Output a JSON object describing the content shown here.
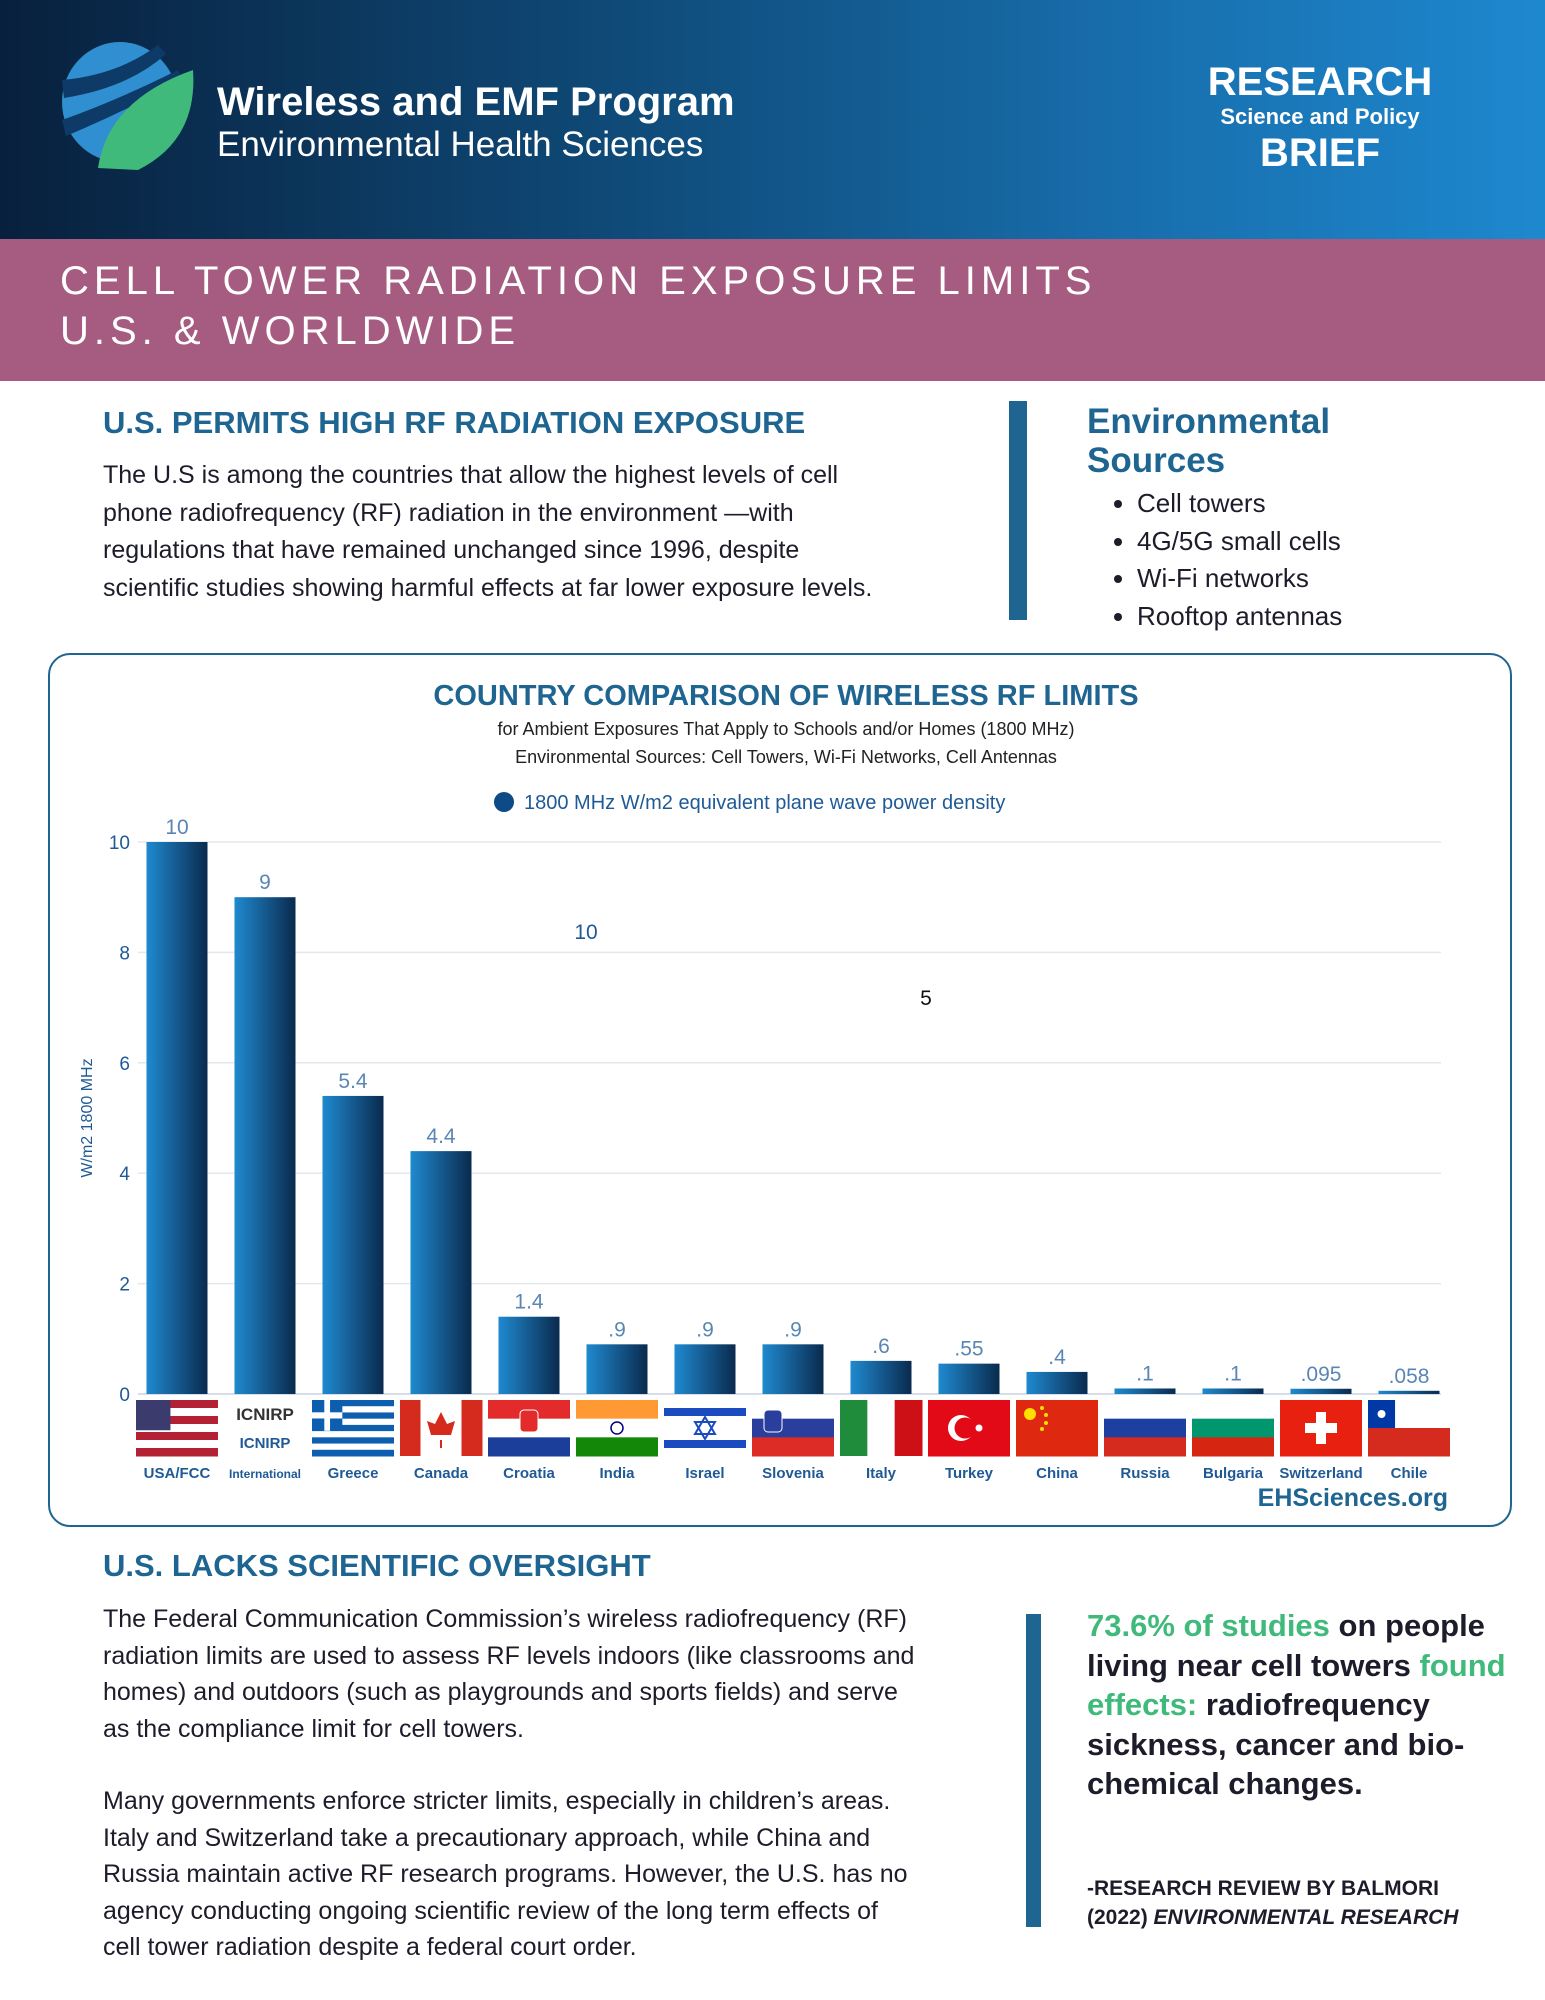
{
  "header": {
    "program": "Wireless and EMF Program",
    "department": "Environmental Health Sciences",
    "brief_line1": "RESEARCH",
    "brief_line2": "Science and Policy",
    "brief_line3": "BRIEF"
  },
  "banner": {
    "line1": "CELL TOWER RADIATION EXPOSURE LIMITS",
    "line2": "U.S. & WORLDWIDE"
  },
  "section1": {
    "heading": "U.S. PERMITS HIGH RF RADIATION EXPOSURE",
    "lines": [
      "The U.S is among the countries that allow the highest levels of cell",
      "phone radiofrequency (RF) radiation in the environment —with",
      "regulations that have remained unchanged since 1996, despite",
      "scientific studies showing harmful effects at far lower exposure levels."
    ]
  },
  "sidebar": {
    "title_line1": "Environmental",
    "title_line2": "Sources",
    "items": [
      "Cell towers",
      "4G/5G small cells",
      "Wi-Fi networks",
      "Rooftop antennas"
    ]
  },
  "chart_data": {
    "type": "bar",
    "title": "COUNTRY COMPARISON OF WIRELESS RF LIMITS",
    "subtitle1": "for Ambient Exposures That Apply to Schools and/or Homes (1800 MHz)",
    "subtitle2": "Environmental Sources: Cell Towers, Wi-Fi Networks, Cell Antennas",
    "legend": "1800 MHz W/m2 equivalent plane wave power density",
    "ylabel": "W/m2  1800 MHz",
    "ylim": [
      0,
      10
    ],
    "yticks": [
      "0",
      "2",
      "4",
      "6",
      "8",
      "10"
    ],
    "grid": true,
    "categories": [
      "USA/FCC",
      "International",
      "Greece",
      "Canada",
      "Croatia",
      "India",
      "Israel",
      "Slovenia",
      "Italy",
      "Turkey",
      "China",
      "Russia",
      "Bulgaria",
      "Switzerland",
      "Chile"
    ],
    "values": [
      10,
      9,
      5.4,
      4.4,
      1.4,
      0.9,
      0.9,
      0.9,
      0.6,
      0.55,
      0.4,
      0.1,
      0.1,
      0.095,
      0.058
    ],
    "data_labels": [
      "10",
      "9",
      "5.4",
      "4.4",
      "1.4",
      ".9",
      ".9",
      ".9",
      ".6",
      ".55",
      ".4",
      ".1",
      ".1",
      ".095",
      ".058"
    ],
    "icnirp_logo": "ICNIRP",
    "icnirp_label": "ICNIRP",
    "stray_labels": [
      "10",
      "5"
    ],
    "source": "EHSciences.org",
    "colors": {
      "bar_light": "#1f8ad0",
      "bar_dark": "#0a2a4e",
      "label": "#5a86b5",
      "axis": "#1f5a96"
    }
  },
  "section2": {
    "heading": "U.S. LACKS SCIENTIFIC OVERSIGHT",
    "para1": [
      "The Federal Communication Commission’s wireless radiofrequency (RF)",
      "radiation limits are used to assess RF levels indoors (like classrooms and",
      "homes) and outdoors (such as playgrounds and sports fields) and serve",
      "as the compliance limit for cell towers."
    ],
    "para2": [
      "Many governments enforce stricter limits, especially in children’s areas.",
      "Italy and Switzerland take a precautionary approach, while China and",
      "Russia maintain active RF research programs. However, the U.S. has no",
      "agency conducting ongoing scientific review of the long term effects of",
      "cell tower radiation despite a federal court order."
    ]
  },
  "quote": {
    "highlight1": "73.6% of studies",
    "text1": " on people living near cell towers ",
    "highlight2": "found effects:",
    "text2": " radiofrequency sickness, cancer and bio-chemical changes.",
    "attribution_line1": "-RESEARCH REVIEW BY BALMORI",
    "attribution_line2a": "(2022) ",
    "attribution_line2b": "ENVIRONMENTAL RESEARCH"
  }
}
